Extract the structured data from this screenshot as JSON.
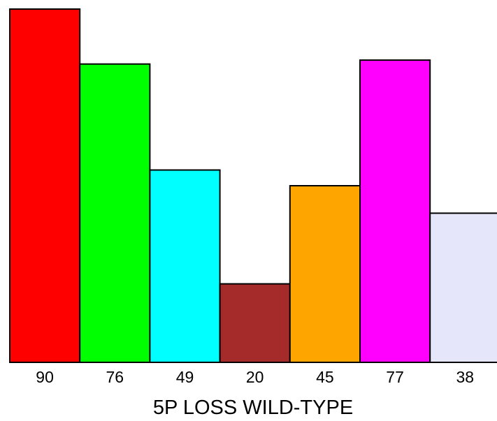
{
  "chart_data": {
    "type": "bar",
    "categories": [
      "90",
      "76",
      "49",
      "20",
      "45",
      "77",
      "38"
    ],
    "values": [
      90,
      76,
      49,
      20,
      45,
      77,
      38
    ],
    "colors": [
      "#ff0000",
      "#00ff00",
      "#00ffff",
      "#a52a2a",
      "#ffa500",
      "#ff00ff",
      "#e6e6fa"
    ],
    "title": "",
    "xlabel": "5P LOSS WILD-TYPE",
    "ylabel": "",
    "ylim": [
      0,
      90
    ]
  }
}
